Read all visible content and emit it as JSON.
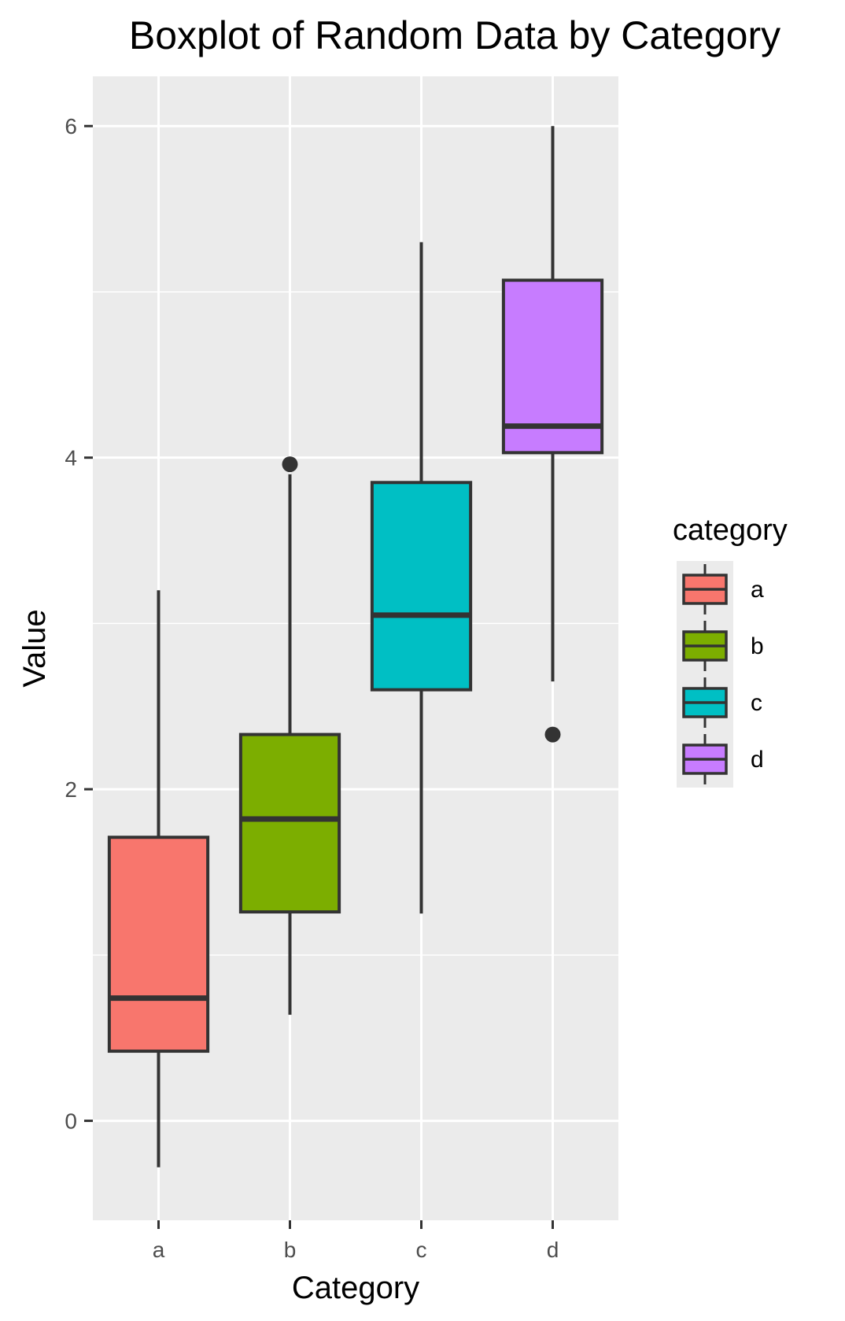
{
  "chart_data": {
    "type": "boxplot",
    "title": "Boxplot of Random Data by Category",
    "xlabel": "Category",
    "ylabel": "Value",
    "categories": [
      "a",
      "b",
      "c",
      "d"
    ],
    "ylim": [
      -0.6,
      6.3
    ],
    "yticks": [
      0,
      2,
      4,
      6
    ],
    "grid": true,
    "legend": {
      "title": "category",
      "position": "right",
      "entries": [
        "a",
        "b",
        "c",
        "d"
      ]
    },
    "colors": {
      "a": "#F8766D",
      "b": "#7CAE00",
      "c": "#00BFC4",
      "d": "#C77CFF",
      "panel": "#EBEBEB",
      "grid": "#FFFFFF",
      "outline": "#333333"
    },
    "boxes": [
      {
        "category": "a",
        "whisker_low": -0.28,
        "q1": 0.42,
        "median": 0.74,
        "q3": 1.71,
        "whisker_high": 3.2,
        "outliers": []
      },
      {
        "category": "b",
        "whisker_low": 0.64,
        "q1": 1.26,
        "median": 1.82,
        "q3": 2.33,
        "whisker_high": 3.9,
        "outliers": [
          3.96
        ]
      },
      {
        "category": "c",
        "whisker_low": 1.25,
        "q1": 2.6,
        "median": 3.05,
        "q3": 3.85,
        "whisker_high": 5.3,
        "outliers": []
      },
      {
        "category": "d",
        "whisker_low": 2.65,
        "q1": 4.03,
        "median": 4.19,
        "q3": 5.07,
        "whisker_high": 6.0,
        "outliers": [
          2.33
        ]
      }
    ]
  }
}
